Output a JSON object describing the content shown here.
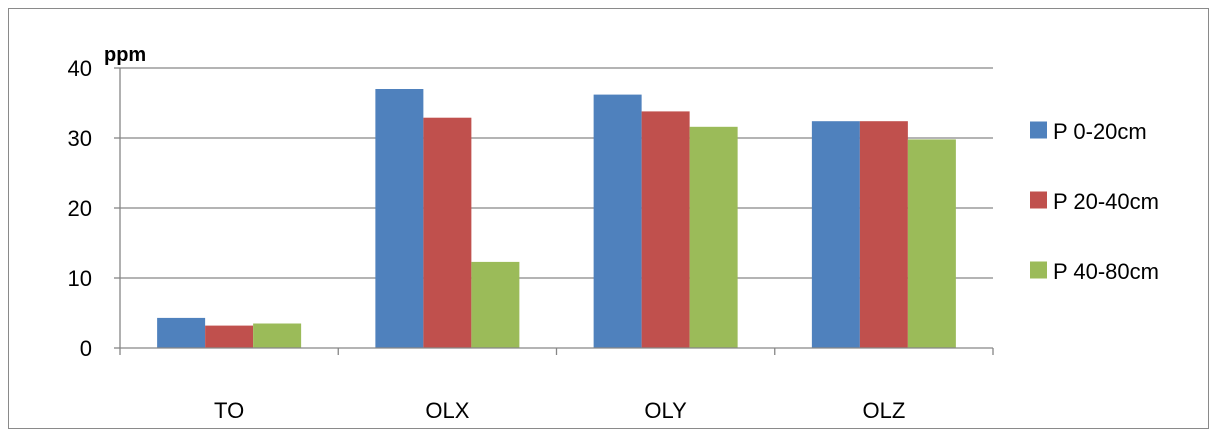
{
  "chart_data": {
    "type": "bar",
    "title": "",
    "xlabel": "",
    "ylabel": "ppm",
    "ylim": [
      0,
      40
    ],
    "yticks": [
      0,
      10,
      20,
      30,
      40
    ],
    "grid": true,
    "legend_position": "right",
    "categories": [
      "TO",
      "OLX",
      "OLY",
      "OLZ"
    ],
    "series": [
      {
        "name": "P 0-20cm",
        "color": "#4F81BD",
        "values": [
          4.3,
          37.0,
          36.2,
          32.4
        ]
      },
      {
        "name": "P 20-40cm",
        "color": "#C0504D",
        "values": [
          3.2,
          32.9,
          33.8,
          32.4
        ]
      },
      {
        "name": "P 40-80cm",
        "color": "#9BBB59",
        "values": [
          3.5,
          12.3,
          31.6,
          29.8
        ]
      }
    ]
  }
}
